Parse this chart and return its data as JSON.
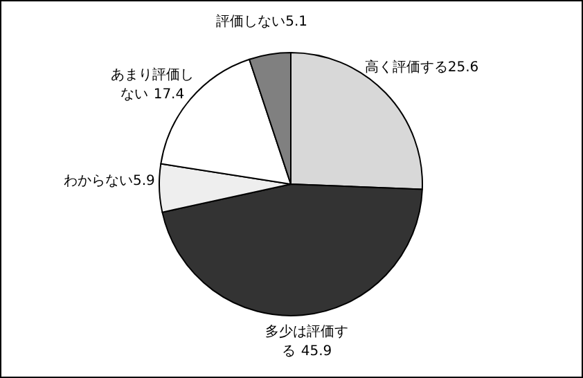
{
  "chart_data": {
    "type": "pie",
    "categories": [
      "高く評価する",
      "多少は評価する",
      "わからない",
      "あまり評価しない",
      "評価しない"
    ],
    "values": [
      25.6,
      45.9,
      5.9,
      17.4,
      5.1
    ],
    "colors": [
      "#d8d8d8",
      "#333333",
      "#eeeeee",
      "#ffffff",
      "#808080"
    ],
    "data_labels": true
  }
}
